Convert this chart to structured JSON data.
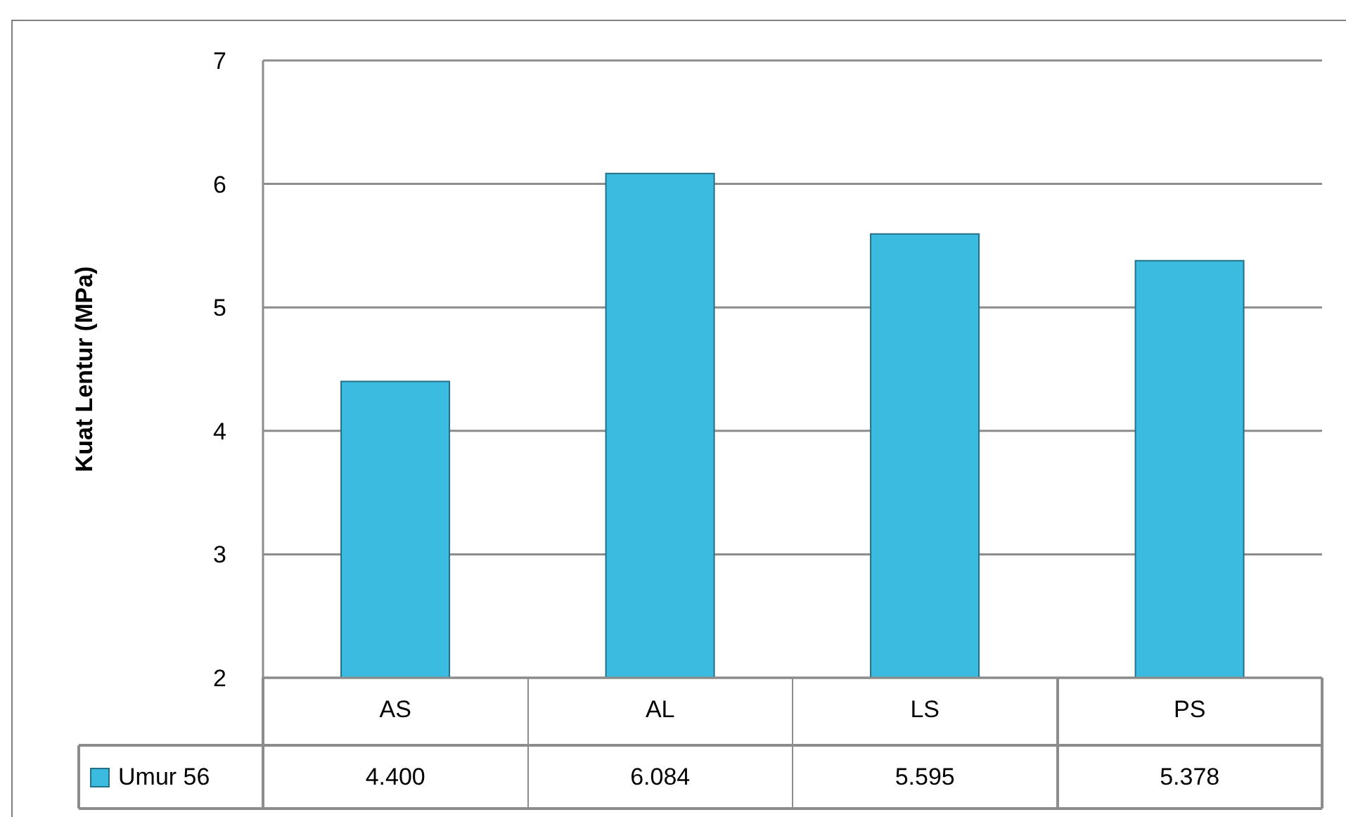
{
  "chart_data": {
    "type": "bar",
    "ylabel": "Kuat Lentur (MPa)",
    "categories": [
      "AS",
      "AL",
      "LS",
      "PS"
    ],
    "series": [
      {
        "name": "Umur 56",
        "color": "#3cbbe0",
        "values": [
          4.4,
          6.084,
          5.595,
          5.378
        ],
        "value_labels": [
          "4.400",
          "6.084",
          "5.595",
          "5.378"
        ]
      }
    ],
    "ylim": [
      2,
      7
    ],
    "yticks": [
      2,
      3,
      4,
      5,
      6,
      7
    ],
    "grid": "y",
    "legend": "bottom"
  }
}
